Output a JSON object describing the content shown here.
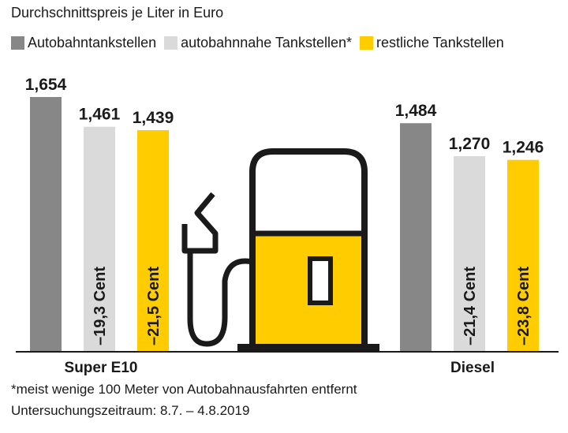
{
  "title": "Durchschnittspreis je Liter in Euro",
  "colors": {
    "autobahn": "#878787",
    "nahe": "#dadada",
    "restlich": "#ffcc00",
    "text": "#1a1a1a"
  },
  "legend": [
    {
      "label": "Autobahntankstellen",
      "color": "#878787"
    },
    {
      "label": "autobahnnahe Tankstellen*",
      "color": "#dadada"
    },
    {
      "label": "restliche Tankstellen",
      "color": "#ffcc00"
    }
  ],
  "chart_data": {
    "type": "bar",
    "title": "Durchschnittspreis je Liter in Euro",
    "categories": [
      "Super E10",
      "Diesel"
    ],
    "series": [
      {
        "name": "Autobahntankstellen",
        "values": [
          1.654,
          1.484
        ],
        "value_labels": [
          "1,654",
          "1,484"
        ],
        "color": "#878787"
      },
      {
        "name": "autobahnnahe Tankstellen*",
        "values": [
          1.461,
          1.27
        ],
        "value_labels": [
          "1,461",
          "1,270"
        ],
        "color": "#dadada",
        "differences": [
          "–19,3 Cent",
          "–21,4 Cent"
        ]
      },
      {
        "name": "restliche Tankstellen",
        "values": [
          1.439,
          1.246
        ],
        "value_labels": [
          "1,439",
          "1,246"
        ],
        "color": "#ffcc00",
        "differences": [
          "–21,5 Cent",
          "–23,8 Cent"
        ]
      }
    ],
    "xlabel": "",
    "ylabel": "",
    "grid": false,
    "legend_position": "top-left"
  },
  "icon": "fuel-pump-icon",
  "footnotes": [
    "*meist wenige 100 Meter von Autobahnausfahrten entfernt",
    "Untersuchungszeitraum: 8.7. – 4.8.2019"
  ]
}
